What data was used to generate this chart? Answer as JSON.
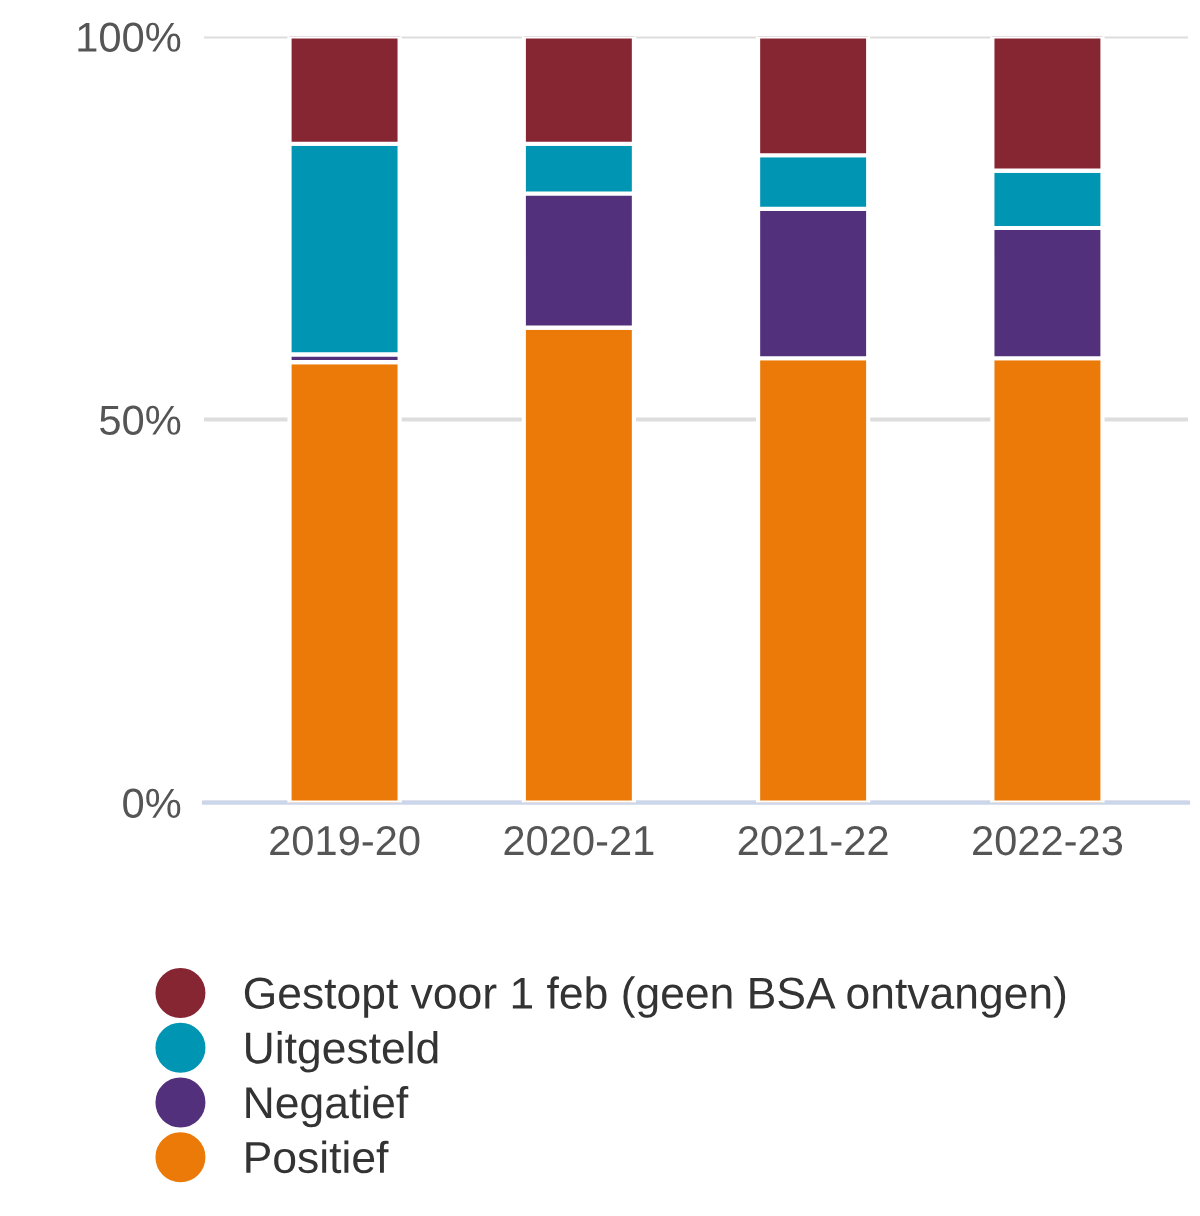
{
  "chart_data": {
    "type": "bar",
    "stacked": true,
    "categories": [
      "2019-20",
      "2020-21",
      "2021-22",
      "2022-23"
    ],
    "series": [
      {
        "name": "Positief",
        "color": "#ec7a08",
        "values": [
          57.5,
          62,
          58,
          58
        ]
      },
      {
        "name": "Negatief",
        "color": "#52307c",
        "values": [
          1,
          17.5,
          19.5,
          17
        ]
      },
      {
        "name": "Uitgesteld",
        "color": "#0095b3",
        "values": [
          27.5,
          6.5,
          7,
          7.5
        ]
      },
      {
        "name": "Gestopt voor 1 feb (geen BSA ontvangen)",
        "color": "#862633",
        "values": [
          14,
          14,
          15.5,
          17.5
        ]
      }
    ],
    "ylim": [
      0,
      100
    ],
    "yticks": [
      {
        "value": 0,
        "label": "0%"
      },
      {
        "value": 50,
        "label": "50%"
      },
      {
        "value": 100,
        "label": "100%"
      }
    ],
    "grid": "y",
    "legend": "bottom"
  }
}
